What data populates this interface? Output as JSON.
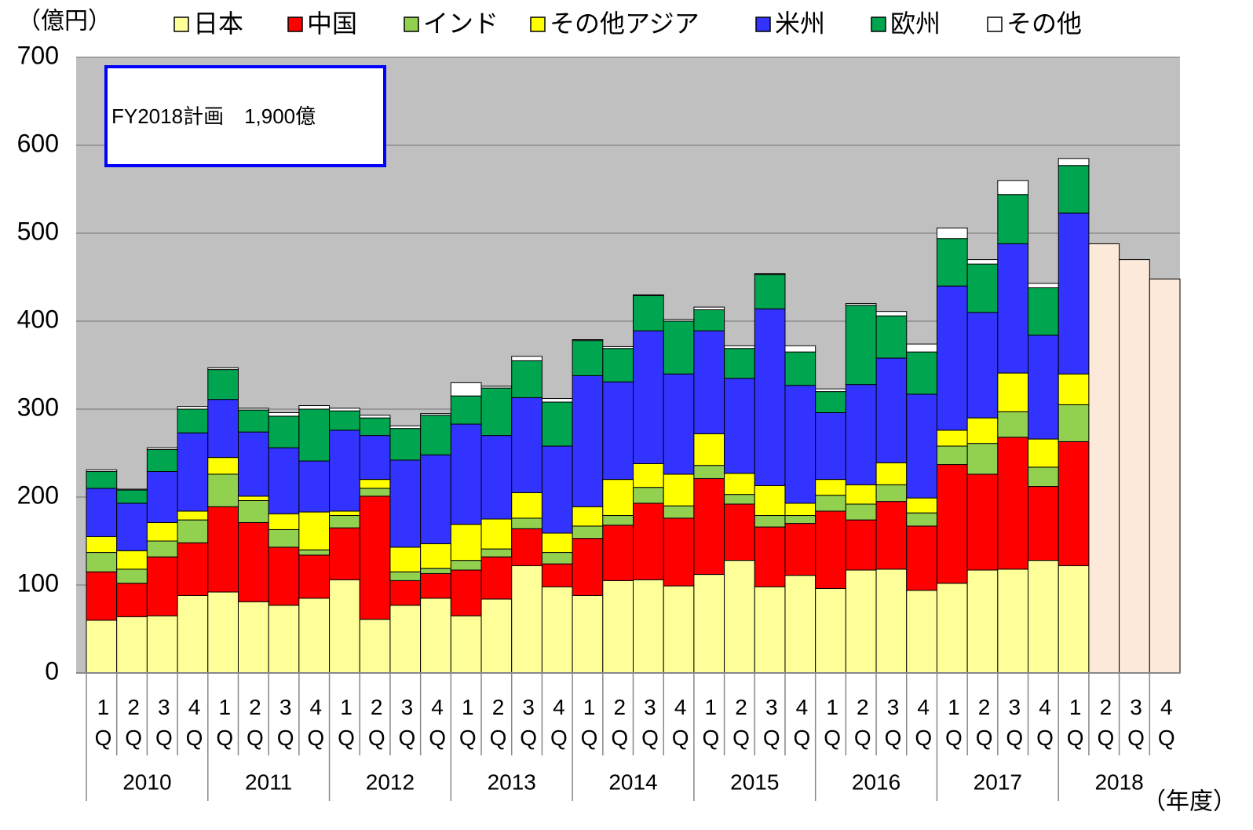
{
  "chart_data": {
    "type": "stacked_bar",
    "y_label": "（億円）",
    "x_label": "（年度）",
    "annotation": "FY2018計画　1,900億",
    "categories": [
      "1Q",
      "2Q",
      "3Q",
      "4Q",
      "1Q",
      "2Q",
      "3Q",
      "4Q",
      "1Q",
      "2Q",
      "3Q",
      "4Q",
      "1Q",
      "2Q",
      "3Q",
      "4Q",
      "1Q",
      "2Q",
      "3Q",
      "4Q",
      "1Q",
      "2Q",
      "3Q",
      "4Q",
      "1Q",
      "2Q",
      "3Q",
      "4Q",
      "1Q",
      "2Q",
      "3Q",
      "4Q",
      "1Q",
      "2Q",
      "3Q",
      "4Q"
    ],
    "groups": [
      "2010",
      "2011",
      "2012",
      "2013",
      "2014",
      "2015",
      "2016",
      "2017",
      "2018"
    ],
    "ylim": [
      0,
      700
    ],
    "yticks": [
      0,
      100,
      200,
      300,
      400,
      500,
      600,
      700
    ],
    "grid": true,
    "series": [
      {
        "name": "日本",
        "color": "#ffff99",
        "values": [
          60,
          64,
          65,
          88,
          92,
          81,
          77,
          85,
          106,
          61,
          77,
          85,
          65,
          84,
          122,
          98,
          88,
          105,
          106,
          99,
          112,
          128,
          98,
          111,
          96,
          117,
          118,
          94,
          102,
          117,
          118,
          128,
          122,
          null,
          null,
          null
        ]
      },
      {
        "name": "中国",
        "color": "#ff0000",
        "values": [
          55,
          38,
          67,
          60,
          97,
          90,
          66,
          49,
          59,
          140,
          28,
          28,
          52,
          48,
          42,
          26,
          65,
          63,
          87,
          77,
          109,
          64,
          68,
          59,
          88,
          57,
          77,
          73,
          135,
          109,
          150,
          84,
          141,
          null,
          null,
          null
        ]
      },
      {
        "name": "インド",
        "color": "#92d050",
        "values": [
          22,
          16,
          18,
          26,
          37,
          25,
          20,
          6,
          14,
          9,
          10,
          6,
          11,
          9,
          12,
          13,
          14,
          11,
          18,
          14,
          15,
          11,
          13,
          9,
          18,
          18,
          19,
          15,
          21,
          35,
          29,
          22,
          42,
          null,
          null,
          null
        ]
      },
      {
        "name": "その他アジア",
        "color": "#ffff00",
        "values": [
          18,
          21,
          21,
          10,
          19,
          5,
          18,
          43,
          5,
          10,
          28,
          28,
          41,
          34,
          29,
          22,
          22,
          41,
          27,
          36,
          36,
          24,
          34,
          14,
          18,
          22,
          25,
          17,
          18,
          29,
          44,
          32,
          35,
          null,
          null,
          null
        ]
      },
      {
        "name": "米州",
        "color": "#3333ff",
        "values": [
          55,
          54,
          58,
          89,
          66,
          73,
          75,
          58,
          92,
          50,
          99,
          101,
          114,
          95,
          108,
          99,
          149,
          111,
          151,
          114,
          117,
          108,
          201,
          134,
          76,
          114,
          119,
          118,
          164,
          120,
          147,
          118,
          183,
          null,
          null,
          null
        ]
      },
      {
        "name": "欧州",
        "color": "#00a550",
        "values": [
          19,
          15,
          25,
          27,
          34,
          25,
          36,
          59,
          22,
          20,
          36,
          45,
          32,
          54,
          42,
          50,
          40,
          38,
          40,
          60,
          24,
          34,
          39,
          38,
          24,
          90,
          48,
          48,
          54,
          55,
          56,
          54,
          54,
          null,
          null,
          null
        ]
      },
      {
        "name": "その他",
        "color": "#ffffff",
        "values": [
          2,
          1,
          2,
          3,
          2,
          2,
          4,
          4,
          3,
          3,
          3,
          2,
          15,
          2,
          5,
          4,
          1,
          2,
          1,
          2,
          3,
          3,
          1,
          7,
          3,
          2,
          5,
          9,
          12,
          5,
          16,
          5,
          8,
          null,
          null,
          null
        ]
      },
      {
        "color": "#fde9d9",
        "values": [
          null,
          null,
          null,
          null,
          null,
          null,
          null,
          null,
          null,
          null,
          null,
          null,
          null,
          null,
          null,
          null,
          null,
          null,
          null,
          null,
          null,
          null,
          null,
          null,
          null,
          null,
          null,
          null,
          null,
          null,
          null,
          null,
          null,
          488,
          470,
          448
        ]
      }
    ]
  }
}
